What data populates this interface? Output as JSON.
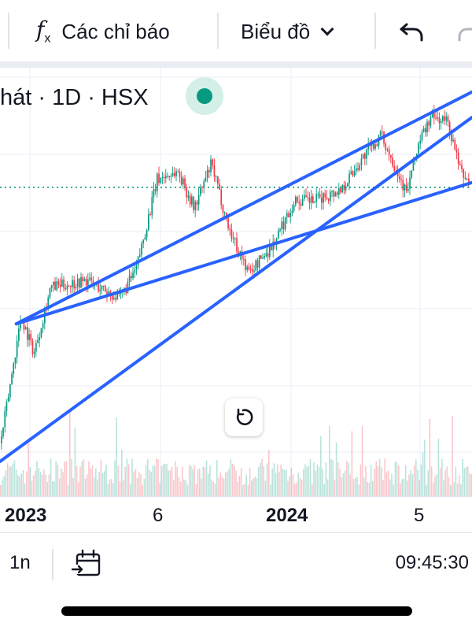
{
  "toolbar": {
    "indicators_icon": "function-fx-icon",
    "indicators_label": "Các chỉ báo",
    "chart_type_label": "Biểu đồ",
    "undo_icon": "undo-arrow-icon",
    "redo_icon": "redo-arrow-icon"
  },
  "legend": {
    "symbol_text": "hát · 1D · HSX",
    "status_color": "#089981"
  },
  "reset_icon": "reset-rotate-icon",
  "bottom": {
    "range_label": "1n",
    "date_range_icon": "calendar-goto-icon",
    "clock": "09:45:30"
  },
  "chart_data": {
    "type": "candlestick",
    "title": "",
    "timeframe": "1D",
    "exchange": "HSX",
    "x_tick_labels": [
      {
        "label": "2023",
        "major": true
      },
      {
        "label": "6",
        "major": false
      },
      {
        "label": "2024",
        "major": true
      },
      {
        "label": "5",
        "major": false
      }
    ],
    "x_domain": [
      "2022-11-25",
      "2024-06-25"
    ],
    "y_axis_visible": false,
    "grid": true,
    "colors": {
      "up": "#089981",
      "down": "#f23645",
      "trendline": "#2962ff",
      "price_line": "#089981"
    },
    "price_path_shape": [
      [
        "2022-11-25",
        0.05
      ],
      [
        "2022-12-20",
        0.4
      ],
      [
        "2023-01-05",
        0.3
      ],
      [
        "2023-01-25",
        0.48
      ],
      [
        "2023-03-10",
        0.5
      ],
      [
        "2023-04-20",
        0.45
      ],
      [
        "2023-05-10",
        0.53
      ],
      [
        "2023-06-05",
        0.78
      ],
      [
        "2023-06-30",
        0.8
      ],
      [
        "2023-07-20",
        0.7
      ],
      [
        "2023-08-10",
        0.82
      ],
      [
        "2023-09-01",
        0.64
      ],
      [
        "2023-09-25",
        0.52
      ],
      [
        "2023-10-25",
        0.6
      ],
      [
        "2023-11-20",
        0.72
      ],
      [
        "2023-12-15",
        0.72
      ],
      [
        "2024-01-15",
        0.75
      ],
      [
        "2024-02-15",
        0.85
      ],
      [
        "2024-03-05",
        0.9
      ],
      [
        "2024-03-25",
        0.8
      ],
      [
        "2024-04-05",
        0.74
      ],
      [
        "2024-04-20",
        0.88
      ],
      [
        "2024-05-05",
        0.95
      ],
      [
        "2024-05-25",
        0.94
      ],
      [
        "2024-06-10",
        0.8
      ],
      [
        "2024-06-25",
        0.76
      ]
    ],
    "price_line_level": 0.757,
    "trendlines": [
      {
        "from": [
          "2022-12-15",
          0.38
        ],
        "to": [
          "2024-06-25",
          1.02
        ]
      },
      {
        "from": [
          "2022-12-15",
          0.38
        ],
        "to": [
          "2024-06-25",
          0.77
        ]
      },
      {
        "from": [
          "2022-11-25",
          0.0
        ],
        "to": [
          "2024-06-25",
          0.95
        ]
      }
    ]
  }
}
